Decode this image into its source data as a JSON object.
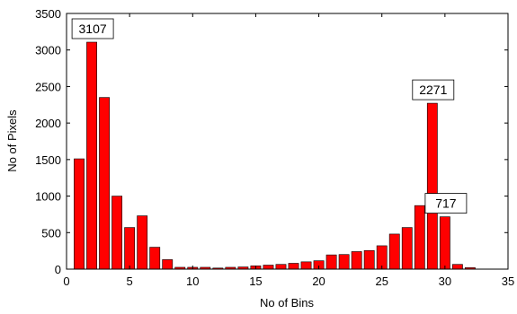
{
  "chart_data": {
    "type": "bar",
    "xlabel": "No of Bins",
    "ylabel": "No of Pixels",
    "xlim": [
      0,
      35
    ],
    "ylim": [
      0,
      3500
    ],
    "xticks": [
      0,
      5,
      10,
      15,
      20,
      25,
      30,
      35
    ],
    "yticks": [
      0,
      500,
      1000,
      1500,
      2000,
      2500,
      3000,
      3500
    ],
    "grid": false,
    "bar_color": "#ff0000",
    "x": [
      1,
      2,
      3,
      4,
      5,
      6,
      7,
      8,
      9,
      10,
      11,
      12,
      13,
      14,
      15,
      16,
      17,
      18,
      19,
      20,
      21,
      22,
      23,
      24,
      25,
      26,
      27,
      28,
      29,
      30,
      31,
      32
    ],
    "values": [
      1510,
      3107,
      2350,
      1000,
      570,
      730,
      300,
      130,
      25,
      25,
      25,
      15,
      25,
      30,
      45,
      55,
      65,
      80,
      100,
      115,
      195,
      200,
      240,
      255,
      320,
      480,
      570,
      870,
      2271,
      717,
      65,
      20
    ],
    "annotations": [
      {
        "label": "3107",
        "x": 2,
        "y": 3107
      },
      {
        "label": "2271",
        "x": 29,
        "y": 2271
      },
      {
        "label": "717",
        "x": 30,
        "y": 717
      }
    ]
  }
}
